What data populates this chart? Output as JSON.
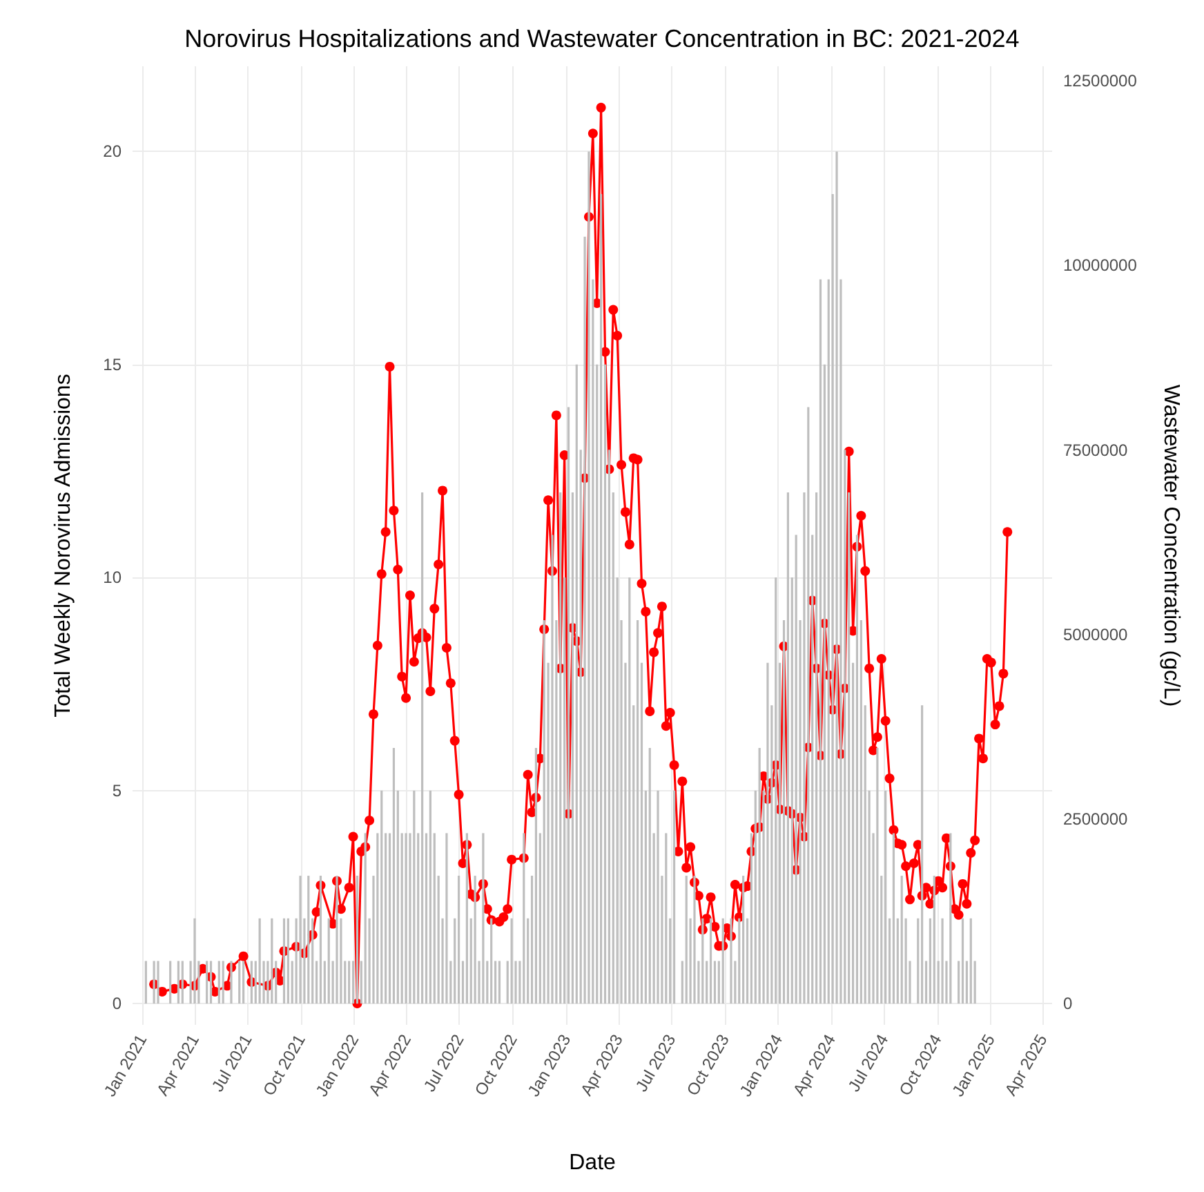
{
  "chart_data": {
    "type": "bar",
    "title": "Norovirus Hospitalizations and Wastewater Concentration in BC: 2021-2024",
    "xlabel": "Date",
    "ylabel": "Total Weekly Norovirus Admissions",
    "y2label": "Wastewater Concentration (gc/L)",
    "x": [
      "2021-01-07",
      "2021-01-14",
      "2021-01-21",
      "2021-01-28",
      "2021-02-04",
      "2021-02-11",
      "2021-02-18",
      "2021-02-25",
      "2021-03-04",
      "2021-03-11",
      "2021-03-18",
      "2021-03-25",
      "2021-04-01",
      "2021-04-08",
      "2021-04-15",
      "2021-04-22",
      "2021-04-29",
      "2021-05-06",
      "2021-05-13",
      "2021-05-20",
      "2021-05-27",
      "2021-06-03",
      "2021-06-10",
      "2021-06-17",
      "2021-06-24",
      "2021-07-01",
      "2021-07-08",
      "2021-07-15",
      "2021-07-22",
      "2021-07-29",
      "2021-08-05",
      "2021-08-12",
      "2021-08-19",
      "2021-08-26",
      "2021-09-02",
      "2021-09-09",
      "2021-09-16",
      "2021-09-23",
      "2021-09-30",
      "2021-10-07",
      "2021-10-14",
      "2021-10-21",
      "2021-10-28",
      "2021-11-04",
      "2021-11-11",
      "2021-11-18",
      "2021-11-25",
      "2021-12-02",
      "2021-12-09",
      "2021-12-16",
      "2021-12-23",
      "2021-12-30",
      "2022-01-06",
      "2022-01-13",
      "2022-01-20",
      "2022-01-27",
      "2022-02-03",
      "2022-02-10",
      "2022-02-17",
      "2022-02-24",
      "2022-03-03",
      "2022-03-10",
      "2022-03-17",
      "2022-03-24",
      "2022-03-31",
      "2022-04-07",
      "2022-04-14",
      "2022-04-21",
      "2022-04-28",
      "2022-05-05",
      "2022-05-12",
      "2022-05-19",
      "2022-05-26",
      "2022-06-02",
      "2022-06-09",
      "2022-06-16",
      "2022-06-23",
      "2022-06-30",
      "2022-07-07",
      "2022-07-14",
      "2022-07-21",
      "2022-07-28",
      "2022-08-04",
      "2022-08-11",
      "2022-08-18",
      "2022-08-25",
      "2022-09-01",
      "2022-09-08",
      "2022-09-15",
      "2022-09-22",
      "2022-09-29",
      "2022-10-06",
      "2022-10-13",
      "2022-10-20",
      "2022-10-27",
      "2022-11-03",
      "2022-11-10",
      "2022-11-17",
      "2022-11-24",
      "2022-12-01",
      "2022-12-08",
      "2022-12-15",
      "2022-12-22",
      "2022-12-29",
      "2023-01-05",
      "2023-01-12",
      "2023-01-19",
      "2023-01-26",
      "2023-02-02",
      "2023-02-09",
      "2023-02-16",
      "2023-02-23",
      "2023-03-02",
      "2023-03-09",
      "2023-03-16",
      "2023-03-23",
      "2023-03-30",
      "2023-04-06",
      "2023-04-13",
      "2023-04-20",
      "2023-04-27",
      "2023-05-04",
      "2023-05-11",
      "2023-05-18",
      "2023-05-25",
      "2023-06-01",
      "2023-06-08",
      "2023-06-15",
      "2023-06-22",
      "2023-06-29",
      "2023-07-06",
      "2023-07-13",
      "2023-07-20",
      "2023-07-27",
      "2023-08-03",
      "2023-08-10",
      "2023-08-17",
      "2023-08-24",
      "2023-08-31",
      "2023-09-07",
      "2023-09-14",
      "2023-09-21",
      "2023-09-28",
      "2023-10-05",
      "2023-10-12",
      "2023-10-19",
      "2023-10-26",
      "2023-11-02",
      "2023-11-09",
      "2023-11-16",
      "2023-11-23",
      "2023-11-30",
      "2023-12-07",
      "2023-12-14",
      "2023-12-21",
      "2023-12-28",
      "2024-01-04",
      "2024-01-11",
      "2024-01-18",
      "2024-01-25",
      "2024-02-01",
      "2024-02-08",
      "2024-02-15",
      "2024-02-22",
      "2024-02-29",
      "2024-03-07",
      "2024-03-14",
      "2024-03-21",
      "2024-03-28",
      "2024-04-04",
      "2024-04-11",
      "2024-04-18",
      "2024-04-25",
      "2024-05-02",
      "2024-05-09",
      "2024-05-16",
      "2024-05-23",
      "2024-05-30",
      "2024-06-06",
      "2024-06-13",
      "2024-06-20",
      "2024-06-27",
      "2024-07-04",
      "2024-07-11",
      "2024-07-18",
      "2024-07-25",
      "2024-08-01",
      "2024-08-08",
      "2024-08-15",
      "2024-08-22",
      "2024-08-29",
      "2024-09-05",
      "2024-09-12",
      "2024-09-19",
      "2024-09-26",
      "2024-10-03",
      "2024-10-10",
      "2024-10-17",
      "2024-10-24",
      "2024-10-31",
      "2024-11-07",
      "2024-11-14",
      "2024-11-21",
      "2024-11-28",
      "2024-12-05"
    ],
    "series": [
      {
        "color": "#bebebe",
        "values": [
          1,
          0,
          1,
          1,
          0,
          0,
          1,
          0,
          1,
          1,
          0,
          1,
          2,
          1,
          0,
          1,
          1,
          0,
          1,
          1,
          0,
          1,
          0,
          1,
          1,
          0,
          1,
          1,
          2,
          1,
          1,
          2,
          1,
          0,
          2,
          2,
          1,
          2,
          3,
          2,
          3,
          2,
          1,
          3,
          1,
          2,
          1,
          3,
          2,
          1,
          1,
          1,
          3,
          1,
          4,
          2,
          3,
          4,
          5,
          4,
          4,
          6,
          5,
          4,
          4,
          4,
          5,
          4,
          12,
          4,
          5,
          4,
          3,
          2,
          4,
          1,
          2,
          3,
          1,
          4,
          2,
          3,
          1,
          4,
          1,
          2,
          1,
          1,
          0,
          1,
          2,
          1,
          1,
          4,
          2,
          3,
          6,
          4,
          9,
          8,
          11,
          9,
          12,
          10,
          14,
          12,
          15,
          13,
          18,
          20,
          17,
          15,
          19,
          15,
          13,
          12,
          10,
          9,
          8,
          10,
          7,
          9,
          8,
          5,
          6,
          4,
          5,
          3,
          4,
          2,
          5,
          0,
          1,
          3,
          2,
          3,
          1,
          2,
          1,
          2,
          1,
          1,
          2,
          0,
          2,
          1,
          2,
          3,
          2,
          4,
          5,
          6,
          5,
          8,
          7,
          10,
          8,
          9,
          12,
          10,
          11,
          9,
          12,
          14,
          11,
          12,
          17,
          15,
          17,
          19,
          20,
          17,
          13,
          12,
          8,
          11,
          9,
          7,
          5,
          4,
          6,
          3,
          5,
          2,
          4,
          2,
          3,
          2,
          1,
          0,
          2,
          7,
          1,
          2,
          3,
          1,
          2,
          1,
          4,
          0,
          1,
          2,
          1,
          2,
          1
        ]
      },
      {
        "type": "line",
        "axis": "y2",
        "color": "#ff0000",
        "x": [
          "2021-01-21",
          "2021-02-04",
          "2021-02-25",
          "2021-03-11",
          "2021-04-01",
          "2021-04-15",
          "2021-04-29",
          "2021-05-06",
          "2021-05-27",
          "2021-06-03",
          "2021-06-24",
          "2021-07-08",
          "2021-08-05",
          "2021-08-19",
          "2021-08-26",
          "2021-09-02",
          "2021-09-23",
          "2021-10-07",
          "2021-10-21",
          "2021-10-28",
          "2021-11-04",
          "2021-11-25",
          "2021-12-02",
          "2021-12-09",
          "2021-12-23",
          "2021-12-30",
          "2022-01-06",
          "2022-01-13",
          "2022-01-20",
          "2022-01-27",
          "2022-02-03",
          "2022-02-10",
          "2022-02-17",
          "2022-02-24",
          "2022-03-03",
          "2022-03-10",
          "2022-03-17",
          "2022-03-24",
          "2022-03-31",
          "2022-04-07",
          "2022-04-14",
          "2022-04-21",
          "2022-04-28",
          "2022-05-05",
          "2022-05-12",
          "2022-05-19",
          "2022-05-26",
          "2022-06-02",
          "2022-06-09",
          "2022-06-16",
          "2022-06-23",
          "2022-06-30",
          "2022-07-07",
          "2022-07-14",
          "2022-07-21",
          "2022-07-28",
          "2022-08-11",
          "2022-08-18",
          "2022-08-25",
          "2022-09-08",
          "2022-09-15",
          "2022-09-22",
          "2022-09-29",
          "2022-10-20",
          "2022-10-27",
          "2022-11-03",
          "2022-11-10",
          "2022-11-17",
          "2022-11-24",
          "2022-12-01",
          "2022-12-08",
          "2022-12-15",
          "2022-12-22",
          "2022-12-29",
          "2023-01-05",
          "2023-01-12",
          "2023-01-19",
          "2023-01-26",
          "2023-02-02",
          "2023-02-09",
          "2023-02-16",
          "2023-02-23",
          "2023-03-02",
          "2023-03-09",
          "2023-03-16",
          "2023-03-23",
          "2023-03-30",
          "2023-04-06",
          "2023-04-13",
          "2023-04-20",
          "2023-04-27",
          "2023-05-04",
          "2023-05-11",
          "2023-05-18",
          "2023-05-25",
          "2023-06-01",
          "2023-06-08",
          "2023-06-15",
          "2023-06-22",
          "2023-06-29",
          "2023-07-06",
          "2023-07-13",
          "2023-07-20",
          "2023-07-27",
          "2023-08-03",
          "2023-08-10",
          "2023-08-17",
          "2023-08-24",
          "2023-08-31",
          "2023-09-07",
          "2023-09-14",
          "2023-09-21",
          "2023-09-28",
          "2023-10-05",
          "2023-10-12",
          "2023-10-19",
          "2023-10-26",
          "2023-11-02",
          "2023-11-09",
          "2023-11-16",
          "2023-11-23",
          "2023-11-30",
          "2023-12-07",
          "2023-12-14",
          "2023-12-21",
          "2023-12-28",
          "2024-01-04",
          "2024-01-11",
          "2024-01-18",
          "2024-01-25",
          "2024-02-01",
          "2024-02-08",
          "2024-02-15",
          "2024-02-22",
          "2024-02-29",
          "2024-03-07",
          "2024-03-14",
          "2024-03-21",
          "2024-03-28",
          "2024-04-04",
          "2024-04-11",
          "2024-04-18",
          "2024-04-25",
          "2024-05-02",
          "2024-05-09",
          "2024-05-16",
          "2024-05-23",
          "2024-05-30",
          "2024-06-06",
          "2024-06-13",
          "2024-06-20",
          "2024-06-27",
          "2024-07-04",
          "2024-07-11",
          "2024-07-18",
          "2024-07-25",
          "2024-08-01",
          "2024-08-08",
          "2024-08-15",
          "2024-08-22",
          "2024-08-29",
          "2024-09-05",
          "2024-09-12",
          "2024-09-19",
          "2024-09-26",
          "2024-10-03",
          "2024-10-10",
          "2024-10-17",
          "2024-10-24",
          "2024-10-31",
          "2024-11-07",
          "2024-11-14",
          "2024-11-21",
          "2024-11-28",
          "2024-12-05",
          "2024-12-12",
          "2024-12-19",
          "2024-12-26",
          "2025-01-02",
          "2025-01-09",
          "2025-01-16",
          "2025-01-23",
          "2025-01-30"
        ],
        "values": [
          260000,
          160000,
          200000,
          260000,
          240000,
          470000,
          360000,
          160000,
          240000,
          490000,
          640000,
          290000,
          240000,
          420000,
          310000,
          710000,
          770000,
          680000,
          930000,
          1240000,
          1600000,
          1080000,
          1660000,
          1280000,
          1570000,
          2260000,
          0,
          2060000,
          2120000,
          2480000,
          3920000,
          4850000,
          5820000,
          6390000,
          8630000,
          6680000,
          5880000,
          4430000,
          4140000,
          5530000,
          4630000,
          4950000,
          5020000,
          4960000,
          4230000,
          5350000,
          5950000,
          6950000,
          4820000,
          4340000,
          3560000,
          2830000,
          1900000,
          2150000,
          1480000,
          1440000,
          1620000,
          1280000,
          1130000,
          1110000,
          1170000,
          1280000,
          1950000,
          1970000,
          3100000,
          2590000,
          2790000,
          3320000,
          5070000,
          6820000,
          5860000,
          7970000,
          4540000,
          7430000,
          2570000,
          5090000,
          4910000,
          4490000,
          7120000,
          10660000,
          11790000,
          9490000,
          12140000,
          8830000,
          7240000,
          9400000,
          9050000,
          7300000,
          6660000,
          6220000,
          7390000,
          7370000,
          5690000,
          5310000,
          3960000,
          4760000,
          5020000,
          5380000,
          3760000,
          3940000,
          3230000,
          2060000,
          3010000,
          1840000,
          2120000,
          1640000,
          1460000,
          1000000,
          1150000,
          1440000,
          1040000,
          780000,
          780000,
          1020000,
          910000,
          1610000,
          1170000,
          1570000,
          1590000,
          2060000,
          2370000,
          2390000,
          3080000,
          2770000,
          2990000,
          3230000,
          2630000,
          4840000,
          2610000,
          2570000,
          1810000,
          2520000,
          2260000,
          3470000,
          5460000,
          4540000,
          3360000,
          5150000,
          4450000,
          3980000,
          4800000,
          3380000,
          4270000,
          7480000,
          5050000,
          6190000,
          6610000,
          5860000,
          4540000,
          3430000,
          3610000,
          4670000,
          3830000,
          3050000,
          2350000,
          2170000,
          2150000,
          1860000,
          1410000,
          1900000,
          2150000,
          1460000,
          1570000,
          1350000,
          1530000,
          1660000,
          1570000,
          2240000,
          1860000,
          1280000,
          1200000,
          1620000,
          1350000,
          2040000,
          2210000,
          3590000,
          3320000,
          4670000,
          4620000,
          3780000,
          4030000,
          4470000,
          6390000
        ]
      }
    ],
    "marker": "circle",
    "xlim": [
      "2020-12-15",
      "2025-04-17"
    ],
    "xticks": [
      {
        "value": "2021-01-01",
        "label": "Jan 2021"
      },
      {
        "value": "2021-04-01",
        "label": "Apr 2021"
      },
      {
        "value": "2021-07-01",
        "label": "Jul 2021"
      },
      {
        "value": "2021-10-01",
        "label": "Oct 2021"
      },
      {
        "value": "2022-01-01",
        "label": "Jan 2022"
      },
      {
        "value": "2022-04-01",
        "label": "Apr 2022"
      },
      {
        "value": "2022-07-01",
        "label": "Jul 2022"
      },
      {
        "value": "2022-10-01",
        "label": "Oct 2022"
      },
      {
        "value": "2023-01-01",
        "label": "Jan 2023"
      },
      {
        "value": "2023-04-01",
        "label": "Apr 2023"
      },
      {
        "value": "2023-07-01",
        "label": "Jul 2023"
      },
      {
        "value": "2023-10-01",
        "label": "Oct 2023"
      },
      {
        "value": "2024-01-01",
        "label": "Jan 2024"
      },
      {
        "value": "2024-04-01",
        "label": "Apr 2024"
      },
      {
        "value": "2024-07-01",
        "label": "Jul 2024"
      },
      {
        "value": "2024-10-01",
        "label": "Oct 2024"
      },
      {
        "value": "2025-01-01",
        "label": "Jan 2025"
      },
      {
        "value": "2025-04-01",
        "label": "Apr 2025"
      }
    ],
    "ylim": [
      -0.5,
      22
    ],
    "yticks": [
      0,
      5,
      10,
      15,
      20
    ],
    "y2lim": [
      -290000,
      12700000
    ],
    "y2ticks": [
      0,
      2500000,
      5000000,
      7500000,
      10000000,
      12500000
    ],
    "grid": true
  }
}
